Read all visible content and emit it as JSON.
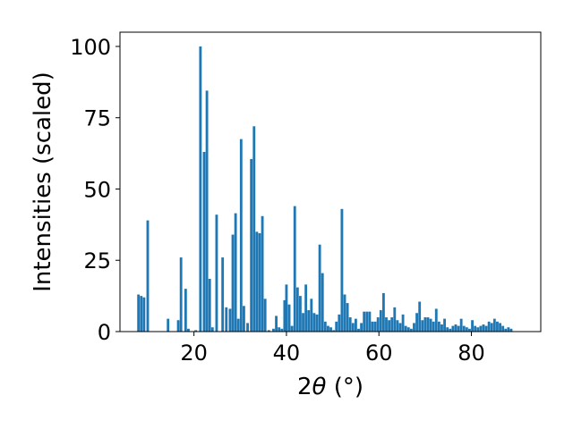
{
  "chart_data": {
    "type": "bar",
    "title": "",
    "xlabel": "2θ (°)",
    "ylabel": "Intensities (scaled)",
    "xlim": [
      4,
      95
    ],
    "ylim": [
      0,
      105
    ],
    "xticks": [
      20,
      40,
      60,
      80
    ],
    "yticks": [
      0,
      25,
      50,
      75,
      100
    ],
    "bar_color": "#1f77b4",
    "grid": false,
    "legend": "none",
    "bars": [
      {
        "x": 8.0,
        "y": 13
      },
      {
        "x": 8.6,
        "y": 12.5
      },
      {
        "x": 9.2,
        "y": 12
      },
      {
        "x": 10.0,
        "y": 39
      },
      {
        "x": 14.4,
        "y": 4.5
      },
      {
        "x": 16.6,
        "y": 4
      },
      {
        "x": 17.2,
        "y": 26
      },
      {
        "x": 18.2,
        "y": 15
      },
      {
        "x": 18.8,
        "y": 1
      },
      {
        "x": 20.4,
        "y": 0.5
      },
      {
        "x": 21.4,
        "y": 100
      },
      {
        "x": 22.2,
        "y": 63
      },
      {
        "x": 22.8,
        "y": 84.5
      },
      {
        "x": 23.4,
        "y": 18.5
      },
      {
        "x": 24.0,
        "y": 1.5
      },
      {
        "x": 24.9,
        "y": 41
      },
      {
        "x": 26.2,
        "y": 26
      },
      {
        "x": 27.0,
        "y": 8.5
      },
      {
        "x": 27.8,
        "y": 8
      },
      {
        "x": 28.4,
        "y": 34
      },
      {
        "x": 29.0,
        "y": 41.5
      },
      {
        "x": 29.6,
        "y": 4.5
      },
      {
        "x": 30.2,
        "y": 67.5
      },
      {
        "x": 30.8,
        "y": 9
      },
      {
        "x": 31.6,
        "y": 3
      },
      {
        "x": 32.4,
        "y": 60.5
      },
      {
        "x": 33.0,
        "y": 72
      },
      {
        "x": 33.6,
        "y": 35
      },
      {
        "x": 34.2,
        "y": 34.5
      },
      {
        "x": 34.8,
        "y": 40.5
      },
      {
        "x": 35.4,
        "y": 11.5
      },
      {
        "x": 36.2,
        "y": 0.5
      },
      {
        "x": 37.2,
        "y": 1
      },
      {
        "x": 37.8,
        "y": 5.5
      },
      {
        "x": 38.4,
        "y": 1.5
      },
      {
        "x": 39.0,
        "y": 1
      },
      {
        "x": 39.6,
        "y": 11
      },
      {
        "x": 40.0,
        "y": 16.5
      },
      {
        "x": 40.6,
        "y": 9.5
      },
      {
        "x": 41.2,
        "y": 2
      },
      {
        "x": 41.8,
        "y": 44
      },
      {
        "x": 42.4,
        "y": 15.5
      },
      {
        "x": 43.0,
        "y": 12.5
      },
      {
        "x": 43.6,
        "y": 6.5
      },
      {
        "x": 44.2,
        "y": 16.5
      },
      {
        "x": 44.8,
        "y": 7.5
      },
      {
        "x": 45.4,
        "y": 11.5
      },
      {
        "x": 46.0,
        "y": 6.5
      },
      {
        "x": 46.6,
        "y": 6
      },
      {
        "x": 47.2,
        "y": 30.5
      },
      {
        "x": 47.8,
        "y": 20.5
      },
      {
        "x": 48.4,
        "y": 3.5
      },
      {
        "x": 49.0,
        "y": 2
      },
      {
        "x": 49.6,
        "y": 1.5
      },
      {
        "x": 50.2,
        "y": 0.5
      },
      {
        "x": 50.8,
        "y": 3.5
      },
      {
        "x": 51.4,
        "y": 6
      },
      {
        "x": 52.0,
        "y": 43
      },
      {
        "x": 52.6,
        "y": 13
      },
      {
        "x": 53.2,
        "y": 10
      },
      {
        "x": 53.8,
        "y": 5
      },
      {
        "x": 54.4,
        "y": 3
      },
      {
        "x": 55.0,
        "y": 4.5
      },
      {
        "x": 55.6,
        "y": 1
      },
      {
        "x": 56.2,
        "y": 3
      },
      {
        "x": 56.8,
        "y": 7
      },
      {
        "x": 57.4,
        "y": 7
      },
      {
        "x": 58.0,
        "y": 7
      },
      {
        "x": 58.6,
        "y": 3.5
      },
      {
        "x": 59.2,
        "y": 3.5
      },
      {
        "x": 59.8,
        "y": 5
      },
      {
        "x": 60.4,
        "y": 7.5
      },
      {
        "x": 61.0,
        "y": 13.5
      },
      {
        "x": 61.6,
        "y": 5
      },
      {
        "x": 62.2,
        "y": 4
      },
      {
        "x": 62.8,
        "y": 5
      },
      {
        "x": 63.4,
        "y": 8.5
      },
      {
        "x": 64.0,
        "y": 4
      },
      {
        "x": 64.6,
        "y": 3
      },
      {
        "x": 65.2,
        "y": 6
      },
      {
        "x": 65.8,
        "y": 2
      },
      {
        "x": 66.4,
        "y": 1.5
      },
      {
        "x": 67.0,
        "y": 1
      },
      {
        "x": 67.6,
        "y": 3
      },
      {
        "x": 68.2,
        "y": 6.5
      },
      {
        "x": 68.8,
        "y": 10.5
      },
      {
        "x": 69.4,
        "y": 4
      },
      {
        "x": 70.0,
        "y": 5
      },
      {
        "x": 70.6,
        "y": 5
      },
      {
        "x": 71.2,
        "y": 4.5
      },
      {
        "x": 71.8,
        "y": 3.5
      },
      {
        "x": 72.4,
        "y": 8
      },
      {
        "x": 73.0,
        "y": 3.5
      },
      {
        "x": 73.6,
        "y": 2.5
      },
      {
        "x": 74.2,
        "y": 4.5
      },
      {
        "x": 74.8,
        "y": 1.5
      },
      {
        "x": 75.4,
        "y": 1
      },
      {
        "x": 76.0,
        "y": 2
      },
      {
        "x": 76.6,
        "y": 2.5
      },
      {
        "x": 77.2,
        "y": 2
      },
      {
        "x": 77.8,
        "y": 4.5
      },
      {
        "x": 78.4,
        "y": 2
      },
      {
        "x": 79.0,
        "y": 1.5
      },
      {
        "x": 79.6,
        "y": 1
      },
      {
        "x": 80.2,
        "y": 4
      },
      {
        "x": 80.8,
        "y": 2
      },
      {
        "x": 81.4,
        "y": 1.5
      },
      {
        "x": 82.0,
        "y": 2
      },
      {
        "x": 82.6,
        "y": 2.5
      },
      {
        "x": 83.2,
        "y": 2
      },
      {
        "x": 83.8,
        "y": 3.5
      },
      {
        "x": 84.4,
        "y": 3
      },
      {
        "x": 85.0,
        "y": 4.5
      },
      {
        "x": 85.6,
        "y": 3.5
      },
      {
        "x": 86.2,
        "y": 3
      },
      {
        "x": 86.8,
        "y": 2
      },
      {
        "x": 87.4,
        "y": 1
      },
      {
        "x": 88.0,
        "y": 1.5
      },
      {
        "x": 88.6,
        "y": 1
      }
    ],
    "bar_width": 0.55
  }
}
